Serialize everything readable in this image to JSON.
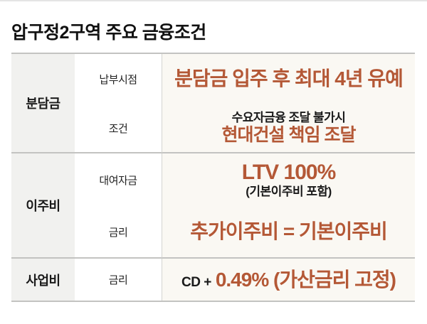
{
  "page": {
    "title": "압구정2구역 주요 금융조건"
  },
  "colors": {
    "accent_orange": "#B45836",
    "text_black": "#1A1A1A",
    "category_column_bg": "#F1F1EF",
    "value_column_bg": "#FAF8F3",
    "border_gray": "#C3C3C1"
  },
  "table": {
    "groups": [
      {
        "category": "분담금",
        "rows": [
          {
            "label": "납부시점",
            "value_main": "분담금 입주 후 최대 4년 유예"
          },
          {
            "label": "조건",
            "value_note": "수요자금융 조달 불가시",
            "value_main": "현대건설 책임 조달"
          }
        ]
      },
      {
        "category": "이주비",
        "rows": [
          {
            "label": "대여자금",
            "value_main": "LTV 100%",
            "value_note": "(기본이주비 포함)"
          },
          {
            "label": "금리",
            "value_main": "추가이주비 = 기본이주비"
          }
        ]
      },
      {
        "category": "사업비",
        "rows": [
          {
            "label": "금리",
            "value_prefix": "CD +",
            "value_main": "0.49% (가산금리 고정)"
          }
        ]
      }
    ]
  },
  "chart_data": {
    "type": "table",
    "title": "압구정2구역 주요 금융조건",
    "rows": [
      [
        "분담금",
        "납부시점",
        "분담금 입주 후 최대 4년 유예"
      ],
      [
        "분담금",
        "조건",
        "수요자금융 조달 불가시 현대건설 책임 조달"
      ],
      [
        "이주비",
        "대여자금",
        "LTV 100% (기본이주비 포함)"
      ],
      [
        "이주비",
        "금리",
        "추가이주비 = 기본이주비"
      ],
      [
        "사업비",
        "금리",
        "CD + 0.49% (가산금리 고정)"
      ]
    ]
  }
}
